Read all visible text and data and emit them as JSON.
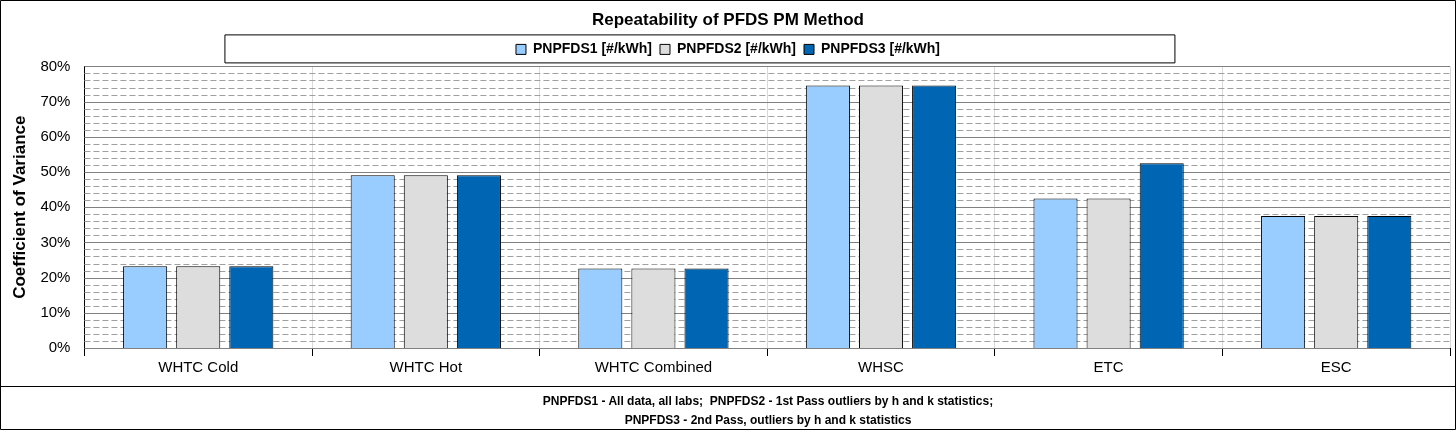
{
  "chart_data": {
    "type": "bar",
    "title": "Repeatability of PFDS PM Method",
    "ylabel": "Coefficient of Variance",
    "categories": [
      "WHTC Cold",
      "WHTC Hot",
      "WHTC Combined",
      "WHSC",
      "ETC",
      "ESC"
    ],
    "series": [
      {
        "name": "PNPFDS1 [#/kWh]",
        "color": "#99ccff",
        "values": [
          23.2,
          49.1,
          22.6,
          74.6,
          42.5,
          37.5
        ]
      },
      {
        "name": "PNPFDS2 [#/kWh]",
        "color": "#dddddd",
        "values": [
          23.2,
          49.1,
          22.6,
          74.6,
          42.5,
          37.5
        ]
      },
      {
        "name": "PNPFDS3 [#/kWh]",
        "color": "#0066b3",
        "values": [
          23.2,
          49.1,
          22.6,
          74.6,
          52.5,
          37.5
        ]
      }
    ],
    "ylim": [
      0,
      80
    ],
    "yticks": [
      {
        "value": 0,
        "label": "0%"
      },
      {
        "value": 2,
        "label": null
      },
      {
        "value": 4,
        "label": null
      },
      {
        "value": 6,
        "label": null
      },
      {
        "value": 8,
        "label": null
      },
      {
        "value": 10,
        "label": "10%"
      },
      {
        "value": 12,
        "label": null
      },
      {
        "value": 14,
        "label": null
      },
      {
        "value": 16,
        "label": null
      },
      {
        "value": 18,
        "label": null
      },
      {
        "value": 20,
        "label": "20%"
      },
      {
        "value": 22,
        "label": null
      },
      {
        "value": 24,
        "label": null
      },
      {
        "value": 26,
        "label": null
      },
      {
        "value": 28,
        "label": null
      },
      {
        "value": 30,
        "label": "30%"
      },
      {
        "value": 32,
        "label": null
      },
      {
        "value": 34,
        "label": null
      },
      {
        "value": 36,
        "label": null
      },
      {
        "value": 38,
        "label": null
      },
      {
        "value": 40,
        "label": "40%"
      },
      {
        "value": 42,
        "label": null
      },
      {
        "value": 44,
        "label": null
      },
      {
        "value": 46,
        "label": null
      },
      {
        "value": 48,
        "label": null
      },
      {
        "value": 50,
        "label": "50%"
      },
      {
        "value": 52,
        "label": null
      },
      {
        "value": 54,
        "label": null
      },
      {
        "value": 56,
        "label": null
      },
      {
        "value": 58,
        "label": null
      },
      {
        "value": 60,
        "label": "60%"
      },
      {
        "value": 62,
        "label": null
      },
      {
        "value": 64,
        "label": null
      },
      {
        "value": 66,
        "label": null
      },
      {
        "value": 68,
        "label": null
      },
      {
        "value": 70,
        "label": "70%"
      },
      {
        "value": 72,
        "label": null
      },
      {
        "value": 74,
        "label": null
      },
      {
        "value": 76,
        "label": null
      },
      {
        "value": 78,
        "label": null
      },
      {
        "value": 80,
        "label": "80%"
      }
    ],
    "grid": true,
    "legend": "top",
    "annotations": [
      "PNPFDS1 - All data, all labs;  PNPFDS2 - 1st Pass outliers by h and k statistics;",
      "PNPFDS3 - 2nd Pass, outliers by h and k statistics"
    ]
  }
}
